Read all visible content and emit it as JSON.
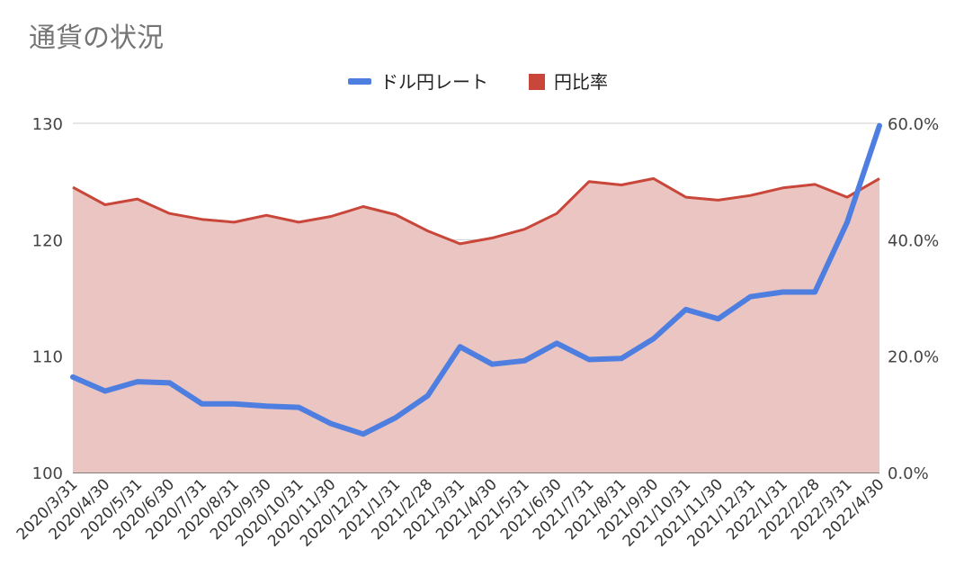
{
  "chart_data": {
    "type": "line",
    "title": "通貨の状況",
    "legend_position": "top",
    "grid": true,
    "categories": [
      "2020/3/31",
      "2020/4/30",
      "2020/5/31",
      "2020/6/30",
      "2020/7/31",
      "2020/8/31",
      "2020/9/30",
      "2020/10/31",
      "2020/11/30",
      "2020/12/31",
      "2021/1/31",
      "2021/2/28",
      "2021/3/31",
      "2021/4/30",
      "2021/5/31",
      "2021/6/30",
      "2021/7/31",
      "2021/8/31",
      "2021/9/30",
      "2021/10/31",
      "2021/11/30",
      "2021/12/31",
      "2022/1/31",
      "2022/2/28",
      "2022/3/31",
      "2022/4/30"
    ],
    "left_axis": {
      "min": 100,
      "max": 130,
      "ticks": [
        "100",
        "110",
        "120",
        "130"
      ],
      "tick_values": [
        100,
        110,
        120,
        130
      ]
    },
    "right_axis": {
      "min": 0,
      "max": 0.6,
      "ticks": [
        "0.0%",
        "20.0%",
        "40.0%",
        "60.0%"
      ],
      "tick_values": [
        0,
        0.2,
        0.4,
        0.6
      ]
    },
    "series": [
      {
        "name": "ドル円レート",
        "type": "line",
        "axis": "left",
        "color": "#4e7fe0",
        "values": [
          108.2,
          107.0,
          107.8,
          107.7,
          105.9,
          105.9,
          105.7,
          105.6,
          104.2,
          103.3,
          104.7,
          106.6,
          110.8,
          109.3,
          109.6,
          111.1,
          109.7,
          109.8,
          111.5,
          114.0,
          113.2,
          115.1,
          115.5,
          115.5,
          121.5,
          129.8
        ]
      },
      {
        "name": "円比率",
        "type": "area",
        "axis": "right",
        "color": "#c9473a",
        "fill": "#ebc5c1",
        "values": [
          0.49,
          0.46,
          0.47,
          0.445,
          0.435,
          0.43,
          0.442,
          0.43,
          0.44,
          0.457,
          0.443,
          0.415,
          0.393,
          0.403,
          0.418,
          0.445,
          0.5,
          0.494,
          0.505,
          0.473,
          0.468,
          0.476,
          0.489,
          0.495,
          0.473,
          0.505
        ]
      }
    ]
  }
}
